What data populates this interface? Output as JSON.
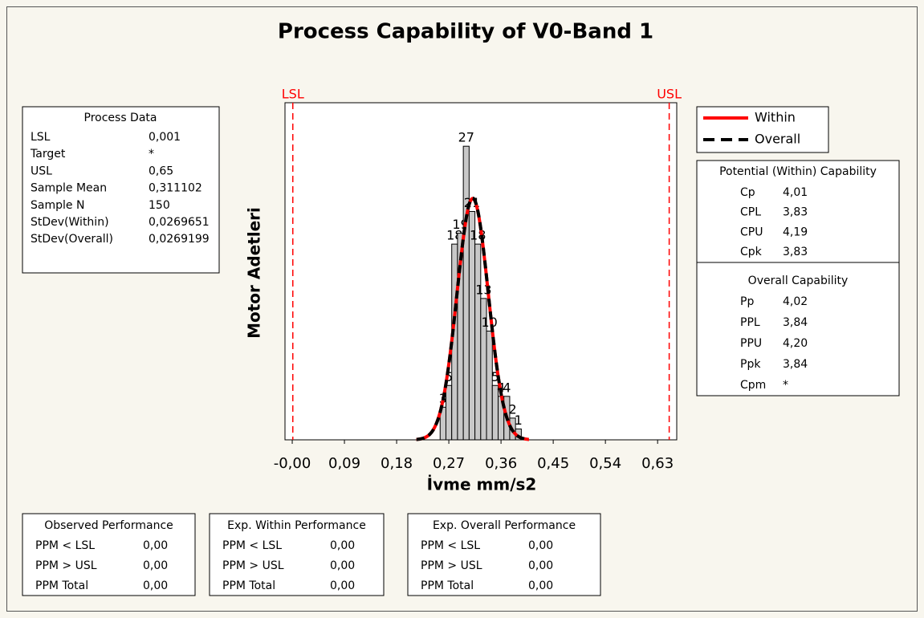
{
  "chart_data": {
    "type": "histogram",
    "title": "Process Capability of V0-Band 1",
    "xlabel": "İvme mm/s2",
    "ylabel": "Motor Adetleri",
    "bins": [
      0.255,
      0.265,
      0.275,
      0.285,
      0.295,
      0.305,
      0.315,
      0.325,
      0.335,
      0.345,
      0.355,
      0.365,
      0.375,
      0.385,
      0.395
    ],
    "counts": [
      3,
      5,
      18,
      19,
      27,
      21,
      18,
      13,
      10,
      5,
      4,
      4,
      2,
      1
    ],
    "bar_color": "#c8c8c8",
    "xlim": [
      -0.0125,
      0.663
    ],
    "ylim": [
      0,
      31
    ],
    "xticks": [
      {
        "value": 0,
        "label": "-0,00"
      },
      {
        "value": 0.09,
        "label": "0,09"
      },
      {
        "value": 0.18,
        "label": "0,18"
      },
      {
        "value": 0.27,
        "label": "0,27"
      },
      {
        "value": 0.36,
        "label": "0,36"
      },
      {
        "value": 0.45,
        "label": "0,45"
      },
      {
        "value": 0.54,
        "label": "0,54"
      },
      {
        "value": 0.63,
        "label": "0,63"
      }
    ],
    "spec_limits": [
      {
        "name": "LSL",
        "value": 0.001,
        "color": "#ff0000"
      },
      {
        "name": "USL",
        "value": 0.65,
        "color": "#ff0000"
      }
    ],
    "sample_n": 150,
    "series": [
      {
        "name": "Within",
        "color": "#ff0000",
        "mean": 0.311102,
        "stdev": 0.0269651,
        "dash": false
      },
      {
        "name": "Overall",
        "color": "#000000",
        "mean": 0.311102,
        "stdev": 0.0269199,
        "dash": true
      }
    ]
  },
  "process_data": {
    "title": "Process Data",
    "rows": [
      [
        "LSL",
        "0,001"
      ],
      [
        "Target",
        "*"
      ],
      [
        "USL",
        "0,65"
      ],
      [
        "Sample Mean",
        "0,311102"
      ],
      [
        "Sample N",
        "150"
      ],
      [
        "StDev(Within)",
        "0,0269651"
      ],
      [
        "StDev(Overall)",
        "0,0269199"
      ]
    ]
  },
  "potential": {
    "title": "Potential (Within) Capability",
    "rows": [
      [
        "Cp",
        "4,01"
      ],
      [
        "CPL",
        "3,83"
      ],
      [
        "CPU",
        "4,19"
      ],
      [
        "Cpk",
        "3,83"
      ]
    ]
  },
  "overall": {
    "title": "Overall Capability",
    "rows": [
      [
        "Pp",
        "4,02"
      ],
      [
        "PPL",
        "3,84"
      ],
      [
        "PPU",
        "4,20"
      ],
      [
        "Ppk",
        "3,84"
      ],
      [
        "Cpm",
        "*"
      ]
    ]
  },
  "performance": [
    {
      "title": "Observed Performance",
      "rows": [
        [
          "PPM < LSL",
          "0,00"
        ],
        [
          "PPM > USL",
          "0,00"
        ],
        [
          "PPM Total",
          "0,00"
        ]
      ]
    },
    {
      "title": "Exp. Within Performance",
      "rows": [
        [
          "PPM < LSL",
          "0,00"
        ],
        [
          "PPM > USL",
          "0,00"
        ],
        [
          "PPM Total",
          "0,00"
        ]
      ]
    },
    {
      "title": "Exp. Overall Performance",
      "rows": [
        [
          "PPM < LSL",
          "0,00"
        ],
        [
          "PPM > USL",
          "0,00"
        ],
        [
          "PPM Total",
          "0,00"
        ]
      ]
    }
  ]
}
